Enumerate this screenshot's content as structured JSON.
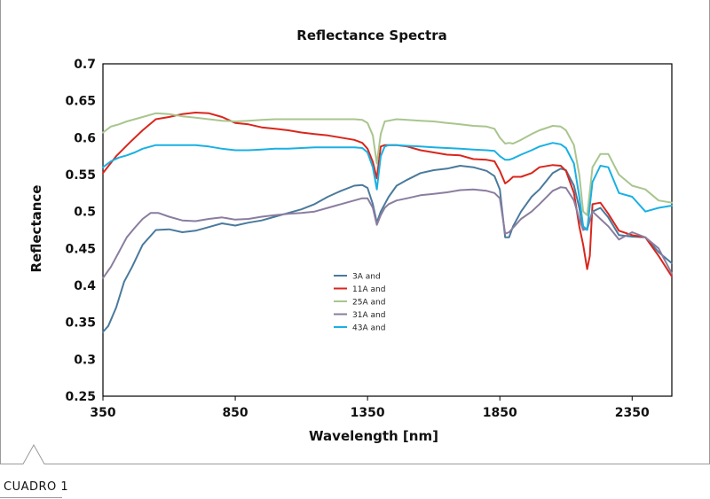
{
  "caption": "CUADRO 1",
  "chart_data": {
    "type": "line",
    "title": "Reflectance Spectra",
    "xlabel": "Wavelength [nm]",
    "ylabel": "Reflectance",
    "xlim": [
      350,
      2500
    ],
    "ylim": [
      0.25,
      0.7
    ],
    "xticks": [
      350,
      850,
      1350,
      1850,
      2350
    ],
    "xtick_labels": [
      "350",
      "850",
      "1350",
      "1850",
      "2350"
    ],
    "yticks": [
      0.25,
      0.3,
      0.35,
      0.4,
      0.45,
      0.5,
      0.55,
      0.6,
      0.65,
      0.7
    ],
    "ytick_labels": [
      "0.25",
      "0.3",
      "0.35",
      "0.4",
      "0.45",
      "0.5",
      "0.55",
      "0.6",
      "0.65",
      "0.7"
    ],
    "grid": false,
    "legend_position": "center",
    "series": [
      {
        "name": "3A and",
        "color": "#4a7a9c",
        "x": [
          350,
          370,
          400,
          430,
          460,
          500,
          550,
          600,
          650,
          700,
          750,
          800,
          850,
          900,
          950,
          1000,
          1050,
          1100,
          1150,
          1200,
          1250,
          1300,
          1330,
          1350,
          1370,
          1385,
          1400,
          1415,
          1430,
          1460,
          1500,
          1550,
          1600,
          1650,
          1700,
          1750,
          1800,
          1830,
          1850,
          1870,
          1885,
          1900,
          1930,
          1970,
          2000,
          2050,
          2080,
          2100,
          2130,
          2150,
          2165,
          2180,
          2200,
          2230,
          2260,
          2300,
          2350,
          2400,
          2450,
          2500
        ],
        "y": [
          0.337,
          0.345,
          0.37,
          0.405,
          0.425,
          0.455,
          0.475,
          0.476,
          0.472,
          0.474,
          0.479,
          0.484,
          0.481,
          0.485,
          0.488,
          0.493,
          0.498,
          0.503,
          0.51,
          0.52,
          0.528,
          0.535,
          0.536,
          0.532,
          0.51,
          0.485,
          0.5,
          0.51,
          0.52,
          0.535,
          0.543,
          0.552,
          0.556,
          0.558,
          0.562,
          0.56,
          0.555,
          0.548,
          0.53,
          0.465,
          0.465,
          0.48,
          0.5,
          0.52,
          0.53,
          0.552,
          0.558,
          0.556,
          0.535,
          0.505,
          0.476,
          0.476,
          0.5,
          0.505,
          0.492,
          0.468,
          0.466,
          0.465,
          0.445,
          0.43
        ]
      },
      {
        "name": "11A and",
        "color": "#d9261c",
        "x": [
          350,
          400,
          450,
          500,
          550,
          600,
          650,
          700,
          750,
          800,
          850,
          900,
          950,
          1000,
          1050,
          1100,
          1150,
          1200,
          1250,
          1300,
          1330,
          1350,
          1370,
          1385,
          1400,
          1415,
          1430,
          1460,
          1500,
          1550,
          1600,
          1650,
          1700,
          1750,
          1800,
          1830,
          1850,
          1870,
          1885,
          1900,
          1930,
          1970,
          2000,
          2050,
          2080,
          2100,
          2130,
          2150,
          2165,
          2180,
          2190,
          2200,
          2230,
          2260,
          2300,
          2350,
          2400,
          2450,
          2500
        ],
        "y": [
          0.552,
          0.575,
          0.593,
          0.61,
          0.625,
          0.628,
          0.632,
          0.634,
          0.633,
          0.628,
          0.62,
          0.618,
          0.614,
          0.612,
          0.61,
          0.607,
          0.605,
          0.603,
          0.6,
          0.597,
          0.593,
          0.585,
          0.567,
          0.545,
          0.588,
          0.59,
          0.59,
          0.59,
          0.588,
          0.583,
          0.58,
          0.577,
          0.576,
          0.571,
          0.57,
          0.568,
          0.555,
          0.538,
          0.542,
          0.547,
          0.547,
          0.552,
          0.56,
          0.563,
          0.562,
          0.555,
          0.525,
          0.48,
          0.455,
          0.422,
          0.44,
          0.51,
          0.512,
          0.497,
          0.474,
          0.468,
          0.465,
          0.44,
          0.412
        ]
      },
      {
        "name": "25A and",
        "color": "#a9c58e",
        "x": [
          350,
          380,
          410,
          440,
          470,
          500,
          550,
          600,
          650,
          700,
          750,
          800,
          850,
          900,
          950,
          1000,
          1050,
          1100,
          1150,
          1200,
          1250,
          1300,
          1330,
          1350,
          1370,
          1385,
          1400,
          1415,
          1430,
          1460,
          1500,
          1550,
          1600,
          1650,
          1700,
          1750,
          1800,
          1830,
          1850,
          1870,
          1885,
          1900,
          1930,
          1970,
          2000,
          2050,
          2080,
          2100,
          2130,
          2150,
          2165,
          2180,
          2200,
          2230,
          2260,
          2300,
          2350,
          2400,
          2450,
          2500
        ],
        "y": [
          0.607,
          0.615,
          0.618,
          0.622,
          0.625,
          0.628,
          0.633,
          0.632,
          0.629,
          0.627,
          0.625,
          0.623,
          0.622,
          0.623,
          0.624,
          0.625,
          0.625,
          0.625,
          0.625,
          0.625,
          0.625,
          0.625,
          0.624,
          0.62,
          0.603,
          0.565,
          0.605,
          0.622,
          0.623,
          0.625,
          0.624,
          0.623,
          0.622,
          0.62,
          0.618,
          0.616,
          0.615,
          0.612,
          0.6,
          0.592,
          0.593,
          0.592,
          0.597,
          0.605,
          0.61,
          0.616,
          0.615,
          0.61,
          0.59,
          0.55,
          0.5,
          0.495,
          0.56,
          0.578,
          0.578,
          0.55,
          0.535,
          0.53,
          0.515,
          0.512
        ]
      },
      {
        "name": "31A and",
        "color": "#8a7d9f",
        "x": [
          350,
          380,
          410,
          440,
          470,
          500,
          530,
          560,
          600,
          650,
          700,
          750,
          800,
          850,
          900,
          950,
          1000,
          1050,
          1100,
          1150,
          1200,
          1250,
          1300,
          1330,
          1350,
          1370,
          1385,
          1400,
          1415,
          1430,
          1460,
          1500,
          1550,
          1600,
          1650,
          1700,
          1750,
          1800,
          1830,
          1850,
          1870,
          1885,
          1900,
          1930,
          1970,
          2000,
          2050,
          2080,
          2100,
          2130,
          2150,
          2165,
          2180,
          2200,
          2230,
          2260,
          2300,
          2350,
          2400,
          2450,
          2500
        ],
        "y": [
          0.41,
          0.425,
          0.445,
          0.465,
          0.478,
          0.49,
          0.498,
          0.498,
          0.493,
          0.488,
          0.487,
          0.49,
          0.492,
          0.489,
          0.49,
          0.493,
          0.495,
          0.497,
          0.498,
          0.5,
          0.505,
          0.51,
          0.515,
          0.518,
          0.518,
          0.505,
          0.482,
          0.495,
          0.505,
          0.51,
          0.515,
          0.518,
          0.522,
          0.524,
          0.526,
          0.529,
          0.53,
          0.528,
          0.525,
          0.518,
          0.47,
          0.472,
          0.478,
          0.49,
          0.5,
          0.51,
          0.528,
          0.533,
          0.532,
          0.515,
          0.49,
          0.475,
          0.478,
          0.5,
          0.49,
          0.48,
          0.462,
          0.472,
          0.465,
          0.45,
          0.416
        ]
      },
      {
        "name": "43A and",
        "color": "#19b0e3",
        "x": [
          350,
          380,
          410,
          440,
          470,
          500,
          550,
          600,
          650,
          700,
          750,
          800,
          850,
          900,
          950,
          1000,
          1050,
          1100,
          1150,
          1200,
          1250,
          1300,
          1330,
          1350,
          1370,
          1385,
          1400,
          1415,
          1430,
          1460,
          1500,
          1550,
          1600,
          1650,
          1700,
          1750,
          1800,
          1830,
          1850,
          1870,
          1885,
          1900,
          1930,
          1970,
          2000,
          2050,
          2080,
          2100,
          2130,
          2150,
          2165,
          2180,
          2200,
          2230,
          2260,
          2300,
          2350,
          2400,
          2450,
          2500
        ],
        "y": [
          0.56,
          0.568,
          0.573,
          0.576,
          0.58,
          0.585,
          0.59,
          0.59,
          0.59,
          0.59,
          0.588,
          0.585,
          0.583,
          0.583,
          0.584,
          0.585,
          0.585,
          0.586,
          0.587,
          0.587,
          0.587,
          0.587,
          0.586,
          0.58,
          0.56,
          0.53,
          0.575,
          0.588,
          0.59,
          0.59,
          0.589,
          0.588,
          0.587,
          0.586,
          0.585,
          0.584,
          0.583,
          0.582,
          0.575,
          0.57,
          0.57,
          0.572,
          0.577,
          0.583,
          0.588,
          0.593,
          0.591,
          0.586,
          0.565,
          0.52,
          0.48,
          0.475,
          0.54,
          0.562,
          0.56,
          0.525,
          0.52,
          0.5,
          0.505,
          0.508
        ]
      }
    ]
  }
}
